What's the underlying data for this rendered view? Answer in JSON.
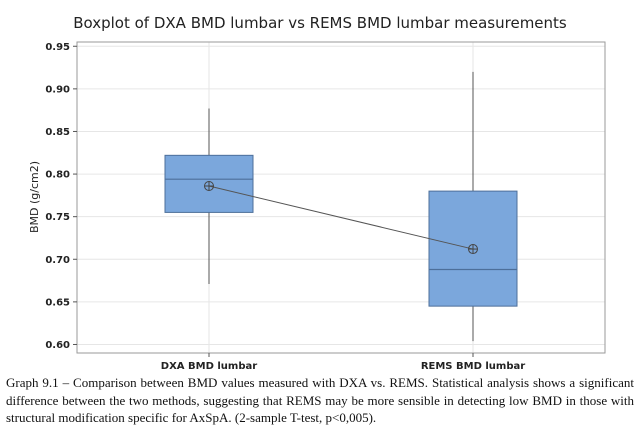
{
  "chart_data": {
    "type": "boxplot",
    "title": "Boxplot of DXA BMD lumbar vs REMS BMD lumbar measurements",
    "xlabel": "",
    "ylabel": "BMD (g/cm2)",
    "ylim": [
      0.59,
      0.955
    ],
    "yticks": [
      0.6,
      0.65,
      0.7,
      0.75,
      0.8,
      0.85,
      0.9,
      0.95
    ],
    "grid": true,
    "categories": [
      "DXA BMD lumbar",
      "REMS BMD lumbar"
    ],
    "series": [
      {
        "name": "DXA BMD lumbar",
        "min": 0.671,
        "q1": 0.755,
        "median": 0.794,
        "q3": 0.822,
        "max": 0.877,
        "mean": 0.786
      },
      {
        "name": "REMS BMD lumbar",
        "min": 0.604,
        "q1": 0.645,
        "median": 0.688,
        "q3": 0.78,
        "max": 0.92,
        "mean": 0.712
      }
    ],
    "mean_connect_line": true,
    "colors": {
      "box_fill": "#7ba7dc",
      "box_stroke": "#4d6f9a",
      "line": "#555555",
      "grid": "#e6e6e6",
      "frame": "#9a9a9a"
    }
  },
  "caption": "Graph 9.1 – Comparison between BMD values measured with DXA vs. REMS. Statistical analysis shows a significant difference between the two methods, suggesting that REMS may be more sensible in detecting low BMD in those with structural modification specific for AxSpA. (2-sample T-test, p<0,005)."
}
